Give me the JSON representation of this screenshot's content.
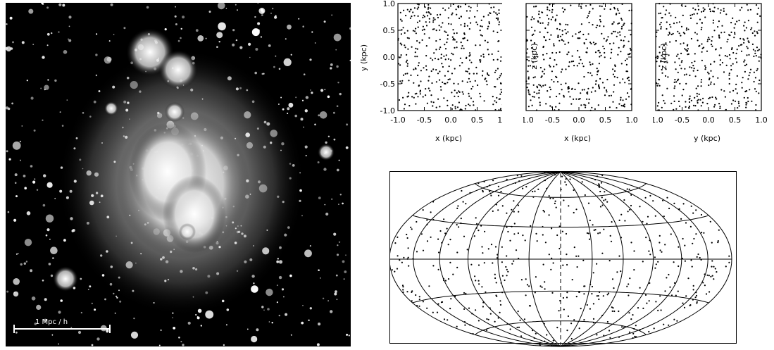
{
  "image": {
    "scale_bar_label": "1 Mpc / h",
    "colors": {
      "background": "#000000",
      "glow": "#ffffff"
    }
  },
  "scatter_panels": [
    {
      "id": "xy",
      "xlabel": "x (kpc)",
      "ylabel": "y (kpc)",
      "xticks": [
        "-1.0",
        "-0.5",
        "0.0",
        "0.5",
        "1.0"
      ],
      "yticks": [
        "1.0",
        "0.5",
        "0.0",
        "-0.5",
        "-1.0"
      ]
    },
    {
      "id": "xz",
      "xlabel": "x (kpc)",
      "ylabel": "z (kpc)",
      "xticks": [
        "-1.0",
        "-0.5",
        "0.0",
        "0.5",
        "1.0"
      ]
    },
    {
      "id": "yz",
      "xlabel": "y (kpc)",
      "ylabel": "z (kpc)",
      "xticks": [
        "-1.0",
        "-0.5",
        "0.0",
        "0.5",
        "1.0"
      ]
    }
  ],
  "chart_data": [
    {
      "type": "scatter",
      "panel": "xy",
      "xlabel": "x (kpc)",
      "ylabel": "y (kpc)",
      "xlim": [
        -1.0,
        1.0
      ],
      "ylim": [
        -1.0,
        1.0
      ],
      "n_points": 400
    },
    {
      "type": "scatter",
      "panel": "xz",
      "xlabel": "x (kpc)",
      "ylabel": "z (kpc)",
      "xlim": [
        -1.0,
        1.0
      ],
      "ylim": [
        -1.0,
        1.0
      ],
      "n_points": 400
    },
    {
      "type": "scatter",
      "panel": "yz",
      "xlabel": "y (kpc)",
      "ylabel": "z (kpc)",
      "xlim": [
        -1.0,
        1.0
      ],
      "ylim": [
        -1.0,
        1.0
      ],
      "n_points": 400
    },
    {
      "type": "scatter",
      "panel": "sky-map",
      "projection": "hammer-aitoff",
      "meridians_deg": [
        -180,
        -150,
        -120,
        -90,
        -60,
        -30,
        0,
        30,
        60,
        90,
        120,
        150,
        180
      ],
      "parallels_deg": [
        -60,
        -30,
        0,
        30,
        60
      ],
      "n_points": 520
    }
  ]
}
